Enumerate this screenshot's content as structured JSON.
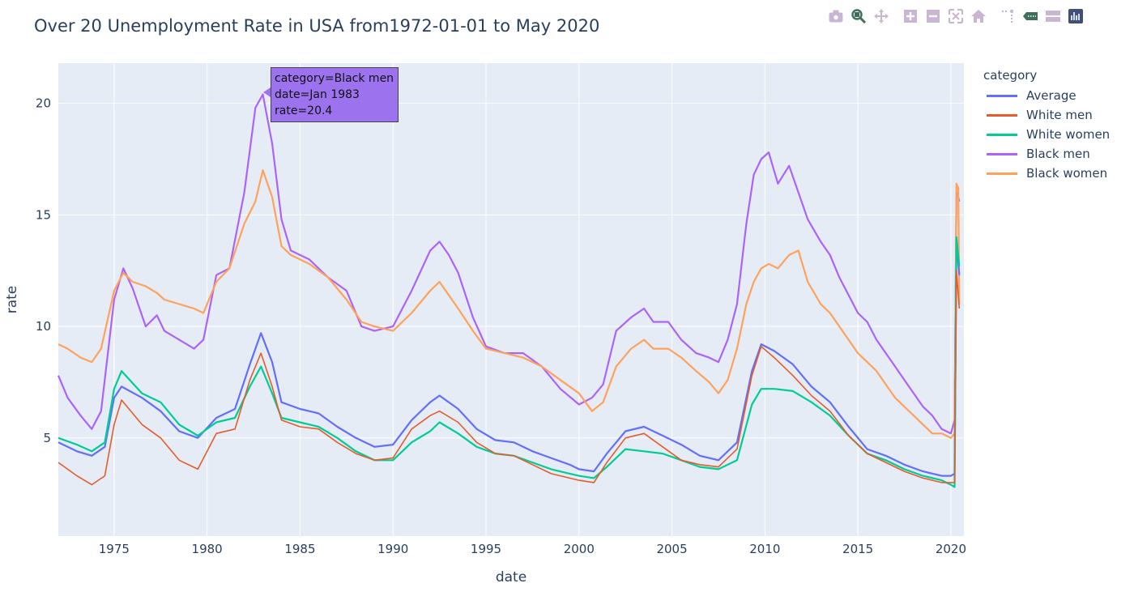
{
  "title": "Over 20 Unemployment Rate in USA from1972-01-01 to May 2020",
  "modebar": [
    {
      "name": "camera-icon",
      "color": "#c9b6d3"
    },
    {
      "name": "zoom-icon",
      "color": "#3f6f5a"
    },
    {
      "name": "pan-icon",
      "color": "#c9b6d3"
    },
    {
      "name": "zoom-in-icon",
      "color": "#c9b6d3"
    },
    {
      "name": "zoom-out-icon",
      "color": "#c9b6d3"
    },
    {
      "name": "autoscale-icon",
      "color": "#c9b6d3"
    },
    {
      "name": "reset-axes-icon",
      "color": "#c9b6d3"
    },
    {
      "name": "spike-lines-icon",
      "color": "#c9b6d3"
    },
    {
      "name": "hover-closest-icon",
      "color": "#3f6f5a"
    },
    {
      "name": "hover-compare-icon",
      "color": "#c9b6d3"
    },
    {
      "name": "plotly-logo-icon",
      "color": "#3f4f75"
    }
  ],
  "legend": {
    "title": "category"
  },
  "tooltip": {
    "lines": [
      "category=Black men",
      "date=Jan 1983",
      "rate=20.4"
    ],
    "background": "#9d72ee"
  },
  "chart_data": {
    "type": "line",
    "title": "Over 20 Unemployment Rate in USA from1972-01-01 to May 2020",
    "xlabel": "date",
    "ylabel": "rate",
    "xlim": [
      1972.0,
      2020.7
    ],
    "ylim": [
      0.6,
      21.8
    ],
    "xticks": [
      1975,
      1980,
      1985,
      1990,
      1995,
      2000,
      2005,
      2010,
      2015,
      2020
    ],
    "yticks": [
      5,
      10,
      15,
      20
    ],
    "plot_background": "#e5ecf6",
    "grid": true,
    "legend_position": "right",
    "series": [
      {
        "name": "Average",
        "color": "#636efa",
        "x": [
          1972.0,
          1973.0,
          1973.8,
          1974.5,
          1975.0,
          1975.4,
          1976.5,
          1977.5,
          1978.5,
          1979.5,
          1980.5,
          1981.5,
          1982.3,
          1982.9,
          1983.5,
          1984.0,
          1985.0,
          1986.0,
          1987.0,
          1988.0,
          1989.0,
          1990.0,
          1991.0,
          1992.0,
          1992.5,
          1993.5,
          1994.5,
          1995.5,
          1996.5,
          1997.5,
          1998.5,
          1999.5,
          2000.0,
          2000.8,
          2001.5,
          2002.5,
          2003.5,
          2004.5,
          2005.5,
          2006.5,
          2007.5,
          2008.5,
          2009.3,
          2009.8,
          2010.5,
          2011.5,
          2012.5,
          2013.5,
          2014.5,
          2015.5,
          2016.5,
          2017.5,
          2018.5,
          2019.5,
          2020.0,
          2020.2,
          2020.3,
          2020.45
        ],
        "y": [
          4.8,
          4.4,
          4.2,
          4.6,
          6.8,
          7.3,
          6.8,
          6.2,
          5.3,
          5.0,
          5.9,
          6.3,
          8.3,
          9.7,
          8.4,
          6.6,
          6.3,
          6.1,
          5.5,
          5.0,
          4.6,
          4.7,
          5.8,
          6.6,
          6.9,
          6.3,
          5.4,
          4.9,
          4.8,
          4.4,
          4.1,
          3.8,
          3.6,
          3.5,
          4.3,
          5.3,
          5.5,
          5.1,
          4.7,
          4.2,
          4.0,
          4.8,
          8.0,
          9.2,
          8.9,
          8.3,
          7.3,
          6.6,
          5.5,
          4.5,
          4.2,
          3.8,
          3.5,
          3.3,
          3.3,
          3.4,
          13.8,
          12.3
        ]
      },
      {
        "name": "White men",
        "color": "#e55c2a",
        "x": [
          1972.0,
          1973.0,
          1973.8,
          1974.5,
          1975.0,
          1975.4,
          1976.5,
          1977.5,
          1978.5,
          1979.5,
          1980.5,
          1981.5,
          1982.3,
          1982.9,
          1983.5,
          1984.0,
          1985.0,
          1986.0,
          1987.0,
          1988.0,
          1989.0,
          1990.0,
          1991.0,
          1992.0,
          1992.5,
          1993.5,
          1994.5,
          1995.5,
          1996.5,
          1997.5,
          1998.5,
          1999.5,
          2000.0,
          2000.8,
          2001.5,
          2002.5,
          2003.5,
          2004.5,
          2005.5,
          2006.5,
          2007.5,
          2008.5,
          2009.3,
          2009.8,
          2010.5,
          2011.5,
          2012.5,
          2013.5,
          2014.5,
          2015.5,
          2016.5,
          2017.5,
          2018.5,
          2019.5,
          2020.0,
          2020.2,
          2020.3,
          2020.45
        ],
        "y": [
          3.9,
          3.3,
          2.9,
          3.3,
          5.6,
          6.7,
          5.6,
          5.0,
          4.0,
          3.6,
          5.2,
          5.4,
          7.6,
          8.8,
          7.3,
          5.8,
          5.5,
          5.4,
          4.8,
          4.3,
          4.0,
          4.1,
          5.4,
          6.0,
          6.2,
          5.7,
          4.8,
          4.3,
          4.2,
          3.8,
          3.4,
          3.2,
          3.1,
          3.0,
          3.9,
          5.0,
          5.2,
          4.6,
          4.0,
          3.8,
          3.7,
          4.5,
          7.8,
          9.1,
          8.6,
          7.8,
          6.9,
          6.2,
          5.1,
          4.3,
          3.9,
          3.5,
          3.2,
          3.0,
          3.0,
          3.0,
          12.5,
          10.8
        ]
      },
      {
        "name": "White women",
        "color": "#00cc96",
        "x": [
          1972.0,
          1973.0,
          1973.8,
          1974.5,
          1975.0,
          1975.4,
          1976.5,
          1977.5,
          1978.5,
          1979.5,
          1980.5,
          1981.5,
          1982.3,
          1982.9,
          1983.5,
          1984.0,
          1985.0,
          1986.0,
          1987.0,
          1988.0,
          1989.0,
          1990.0,
          1991.0,
          1992.0,
          1992.5,
          1993.5,
          1994.5,
          1995.5,
          1996.5,
          1997.5,
          1998.5,
          1999.5,
          2000.0,
          2000.8,
          2001.5,
          2002.5,
          2003.5,
          2004.5,
          2005.5,
          2006.5,
          2007.5,
          2008.5,
          2009.3,
          2009.8,
          2010.5,
          2011.5,
          2012.5,
          2013.5,
          2014.5,
          2015.5,
          2016.5,
          2017.5,
          2018.5,
          2019.5,
          2020.0,
          2020.2,
          2020.3,
          2020.45
        ],
        "y": [
          5.0,
          4.7,
          4.4,
          4.8,
          7.2,
          8.0,
          7.0,
          6.6,
          5.6,
          5.1,
          5.7,
          5.9,
          7.3,
          8.2,
          7.0,
          5.9,
          5.7,
          5.5,
          5.0,
          4.4,
          4.0,
          4.0,
          4.8,
          5.3,
          5.7,
          5.2,
          4.6,
          4.3,
          4.2,
          3.9,
          3.6,
          3.4,
          3.3,
          3.2,
          3.7,
          4.5,
          4.4,
          4.3,
          4.0,
          3.7,
          3.6,
          4.0,
          6.5,
          7.2,
          7.2,
          7.1,
          6.6,
          6.0,
          5.1,
          4.3,
          4.0,
          3.6,
          3.3,
          3.1,
          2.9,
          2.8,
          14.0,
          12.7
        ]
      },
      {
        "name": "Black men",
        "color": "#ab63fa",
        "x": [
          1972.0,
          1972.5,
          1973.2,
          1973.8,
          1974.3,
          1975.0,
          1975.5,
          1976.0,
          1976.7,
          1977.3,
          1977.7,
          1978.5,
          1979.3,
          1979.8,
          1980.5,
          1981.2,
          1982.0,
          1982.6,
          1983.0,
          1983.5,
          1984.0,
          1984.5,
          1985.5,
          1986.5,
          1987.5,
          1988.3,
          1989.0,
          1990.0,
          1991.0,
          1992.0,
          1992.5,
          1993.0,
          1993.5,
          1994.3,
          1995.0,
          1996.0,
          1997.0,
          1998.0,
          1999.0,
          2000.0,
          2000.7,
          2001.3,
          2002.0,
          2002.8,
          2003.5,
          2004.0,
          2004.8,
          2005.5,
          2006.3,
          2007.0,
          2007.5,
          2008.0,
          2008.5,
          2009.0,
          2009.4,
          2009.8,
          2010.2,
          2010.7,
          2011.3,
          2011.8,
          2012.3,
          2013.0,
          2013.5,
          2014.0,
          2014.5,
          2015.0,
          2015.5,
          2016.0,
          2016.5,
          2017.0,
          2017.5,
          2018.0,
          2018.5,
          2019.0,
          2019.5,
          2020.0,
          2020.2,
          2020.3,
          2020.4,
          2020.45
        ],
        "y": [
          7.8,
          6.8,
          6.0,
          5.4,
          6.2,
          11.2,
          12.6,
          11.7,
          10.0,
          10.5,
          9.8,
          9.4,
          9.0,
          9.4,
          12.3,
          12.6,
          16.0,
          19.8,
          20.4,
          18.2,
          14.8,
          13.4,
          13.0,
          12.2,
          11.6,
          10.0,
          9.8,
          10.0,
          11.6,
          13.4,
          13.8,
          13.2,
          12.4,
          10.4,
          9.1,
          8.8,
          8.8,
          8.2,
          7.2,
          6.5,
          6.8,
          7.4,
          9.8,
          10.4,
          10.8,
          10.2,
          10.2,
          9.4,
          8.8,
          8.6,
          8.4,
          9.4,
          11.0,
          14.6,
          16.8,
          17.5,
          17.8,
          16.4,
          17.2,
          16.0,
          14.8,
          13.8,
          13.2,
          12.2,
          11.4,
          10.6,
          10.2,
          9.4,
          8.8,
          8.2,
          7.6,
          7.0,
          6.4,
          6.0,
          5.4,
          5.2,
          5.8,
          16.0,
          15.8,
          15.6
        ]
      },
      {
        "name": "Black women",
        "color": "#ffa15a",
        "x": [
          1972.0,
          1972.5,
          1973.2,
          1973.8,
          1974.3,
          1975.0,
          1975.5,
          1976.0,
          1976.7,
          1977.3,
          1977.7,
          1978.5,
          1979.3,
          1979.8,
          1980.5,
          1981.2,
          1982.0,
          1982.6,
          1983.0,
          1983.5,
          1984.0,
          1984.5,
          1985.5,
          1986.5,
          1987.5,
          1988.3,
          1989.0,
          1990.0,
          1991.0,
          1992.0,
          1992.5,
          1993.0,
          1993.5,
          1994.3,
          1995.0,
          1996.0,
          1997.0,
          1998.0,
          1999.0,
          2000.0,
          2000.7,
          2001.3,
          2002.0,
          2002.8,
          2003.5,
          2004.0,
          2004.8,
          2005.5,
          2006.3,
          2007.0,
          2007.5,
          2008.0,
          2008.5,
          2009.0,
          2009.4,
          2009.8,
          2010.2,
          2010.7,
          2011.3,
          2011.8,
          2012.3,
          2013.0,
          2013.5,
          2014.0,
          2014.5,
          2015.0,
          2015.5,
          2016.0,
          2016.5,
          2017.0,
          2017.5,
          2018.0,
          2018.5,
          2019.0,
          2019.5,
          2020.0,
          2020.2,
          2020.3,
          2020.4,
          2020.45
        ],
        "y": [
          9.2,
          9.0,
          8.6,
          8.4,
          9.0,
          11.6,
          12.4,
          12.0,
          11.8,
          11.5,
          11.2,
          11.0,
          10.8,
          10.6,
          12.0,
          12.6,
          14.6,
          15.6,
          17.0,
          15.8,
          13.6,
          13.2,
          12.8,
          12.2,
          11.2,
          10.2,
          10.0,
          9.8,
          10.6,
          11.6,
          12.0,
          11.4,
          10.8,
          9.8,
          9.0,
          8.8,
          8.6,
          8.2,
          7.6,
          7.0,
          6.2,
          6.6,
          8.2,
          9.0,
          9.4,
          9.0,
          9.0,
          8.6,
          8.0,
          7.5,
          7.0,
          7.6,
          9.0,
          11.0,
          12.0,
          12.6,
          12.8,
          12.6,
          13.2,
          13.4,
          12.0,
          11.0,
          10.6,
          10.0,
          9.4,
          8.8,
          8.4,
          8.0,
          7.4,
          6.8,
          6.4,
          6.0,
          5.6,
          5.2,
          5.2,
          5.0,
          5.2,
          16.4,
          16.2,
          11.0
        ]
      }
    ]
  }
}
